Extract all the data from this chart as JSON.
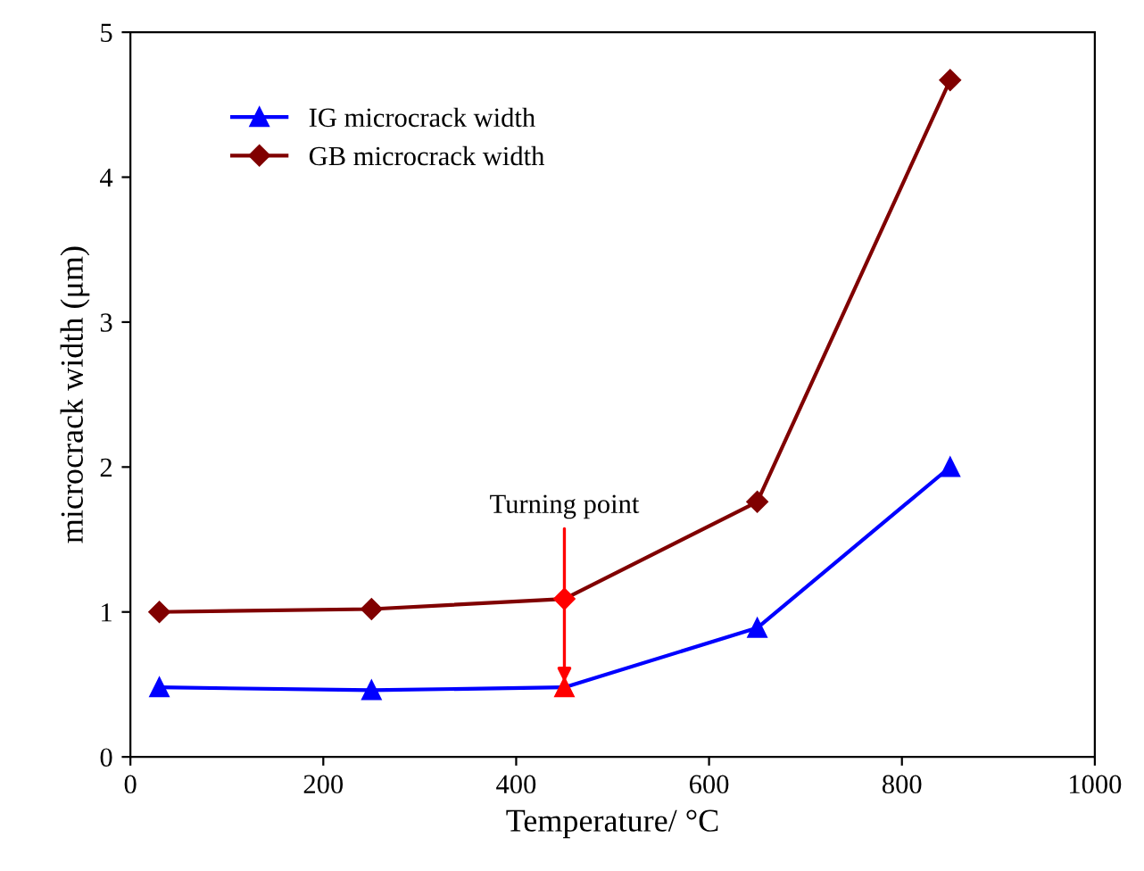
{
  "chart_data": {
    "type": "line",
    "xlabel": "Temperature/ °C",
    "ylabel": "microcrack width (μm)",
    "x": [
      30,
      250,
      450,
      650,
      850
    ],
    "series": [
      {
        "name": "IG microcrack width",
        "color": "#0000ff",
        "colors": [
          "#0000ff",
          "#0000ff",
          "#ff0000",
          "#0000ff",
          "#0000ff"
        ],
        "marker": "triangle",
        "values": [
          0.48,
          0.46,
          0.48,
          0.89,
          2.0
        ]
      },
      {
        "name": "GB microcrack width",
        "color": "#800000",
        "colors": [
          "#800000",
          "#800000",
          "#ff0000",
          "#800000",
          "#800000"
        ],
        "marker": "diamond",
        "values": [
          1.0,
          1.02,
          1.09,
          1.76,
          4.67
        ]
      }
    ],
    "annotations": [
      {
        "text": "Turning point",
        "x": 450,
        "y": 0.48
      }
    ],
    "xlim": [
      0,
      1000
    ],
    "xticks": [
      0,
      200,
      400,
      600,
      800,
      1000
    ],
    "ylim": [
      0,
      5
    ],
    "yticks": [
      0,
      1,
      2,
      3,
      4,
      5
    ],
    "legend": "top left",
    "grid": false
  }
}
